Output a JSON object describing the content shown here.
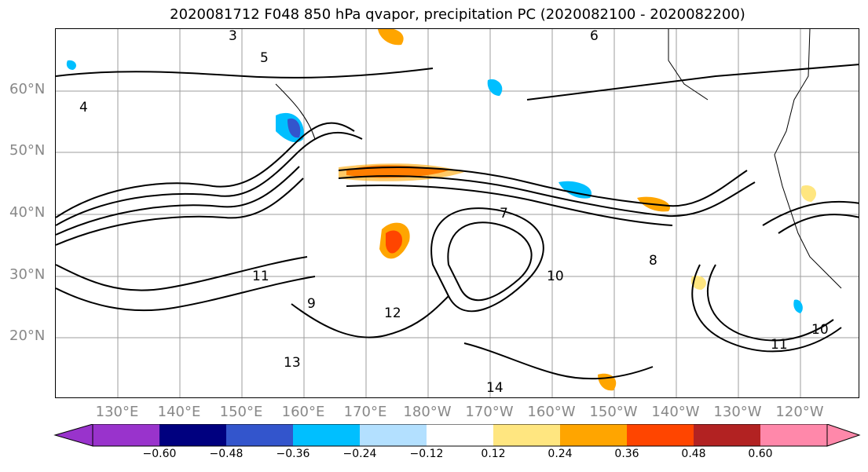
{
  "title": "2020081712 F048 850 hPa qvapor, precipitation PC (2020082100 - 2020082200)",
  "map": {
    "lat_labels": [
      "60°N",
      "50°N",
      "40°N",
      "30°N",
      "20°N"
    ],
    "lon_labels": [
      "130°E",
      "140°E",
      "150°E",
      "160°E",
      "170°E",
      "180°W",
      "170°W",
      "160°W",
      "150°W",
      "140°W",
      "130°W",
      "120°W"
    ],
    "contour_labels": [
      "3",
      "5",
      "4",
      "6",
      "7",
      "8",
      "9",
      "10",
      "11",
      "12",
      "13",
      "14"
    ],
    "gridline_color": "#9e9e9e",
    "contour_color": "#000000"
  },
  "colorbar": {
    "ticks": [
      "−0.60",
      "−0.48",
      "−0.36",
      "−0.24",
      "−0.12",
      "0.12",
      "0.24",
      "0.36",
      "0.48",
      "0.60"
    ],
    "colors": [
      "#9933cc",
      "#00007f",
      "#3355cc",
      "#00bfff",
      "#b3e0ff",
      "#ffffff",
      "#ffe680",
      "#ffa500",
      "#ff4500",
      "#b22222",
      "#ff88aa"
    ]
  }
}
